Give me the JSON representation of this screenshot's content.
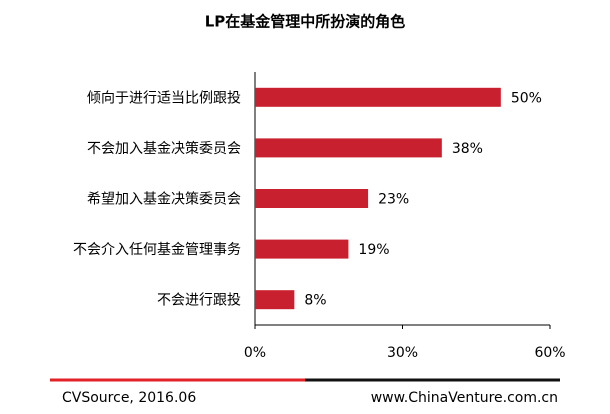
{
  "chart_data": {
    "type": "hbar",
    "title": "LP在基金管理中所扮演的角色",
    "categories": [
      "倾向于进行适当比例跟投",
      "不会加入基金决策委员会",
      "希望加入基金决策委员会",
      "不会介入任何基金管理事务",
      "不会进行跟投"
    ],
    "values": [
      50,
      38,
      23,
      19,
      8
    ],
    "value_labels": [
      "50%",
      "38%",
      "23%",
      "19%",
      "8%"
    ],
    "color": "#c8202f",
    "xlim": [
      0,
      60
    ],
    "xticks": [
      {
        "value": 0,
        "label": "0%"
      },
      {
        "value": 30,
        "label": "30%"
      },
      {
        "value": 60,
        "label": "60%"
      }
    ],
    "source": "CVSource, 2016.06",
    "website": "www.ChinaVenture.com.cn"
  }
}
